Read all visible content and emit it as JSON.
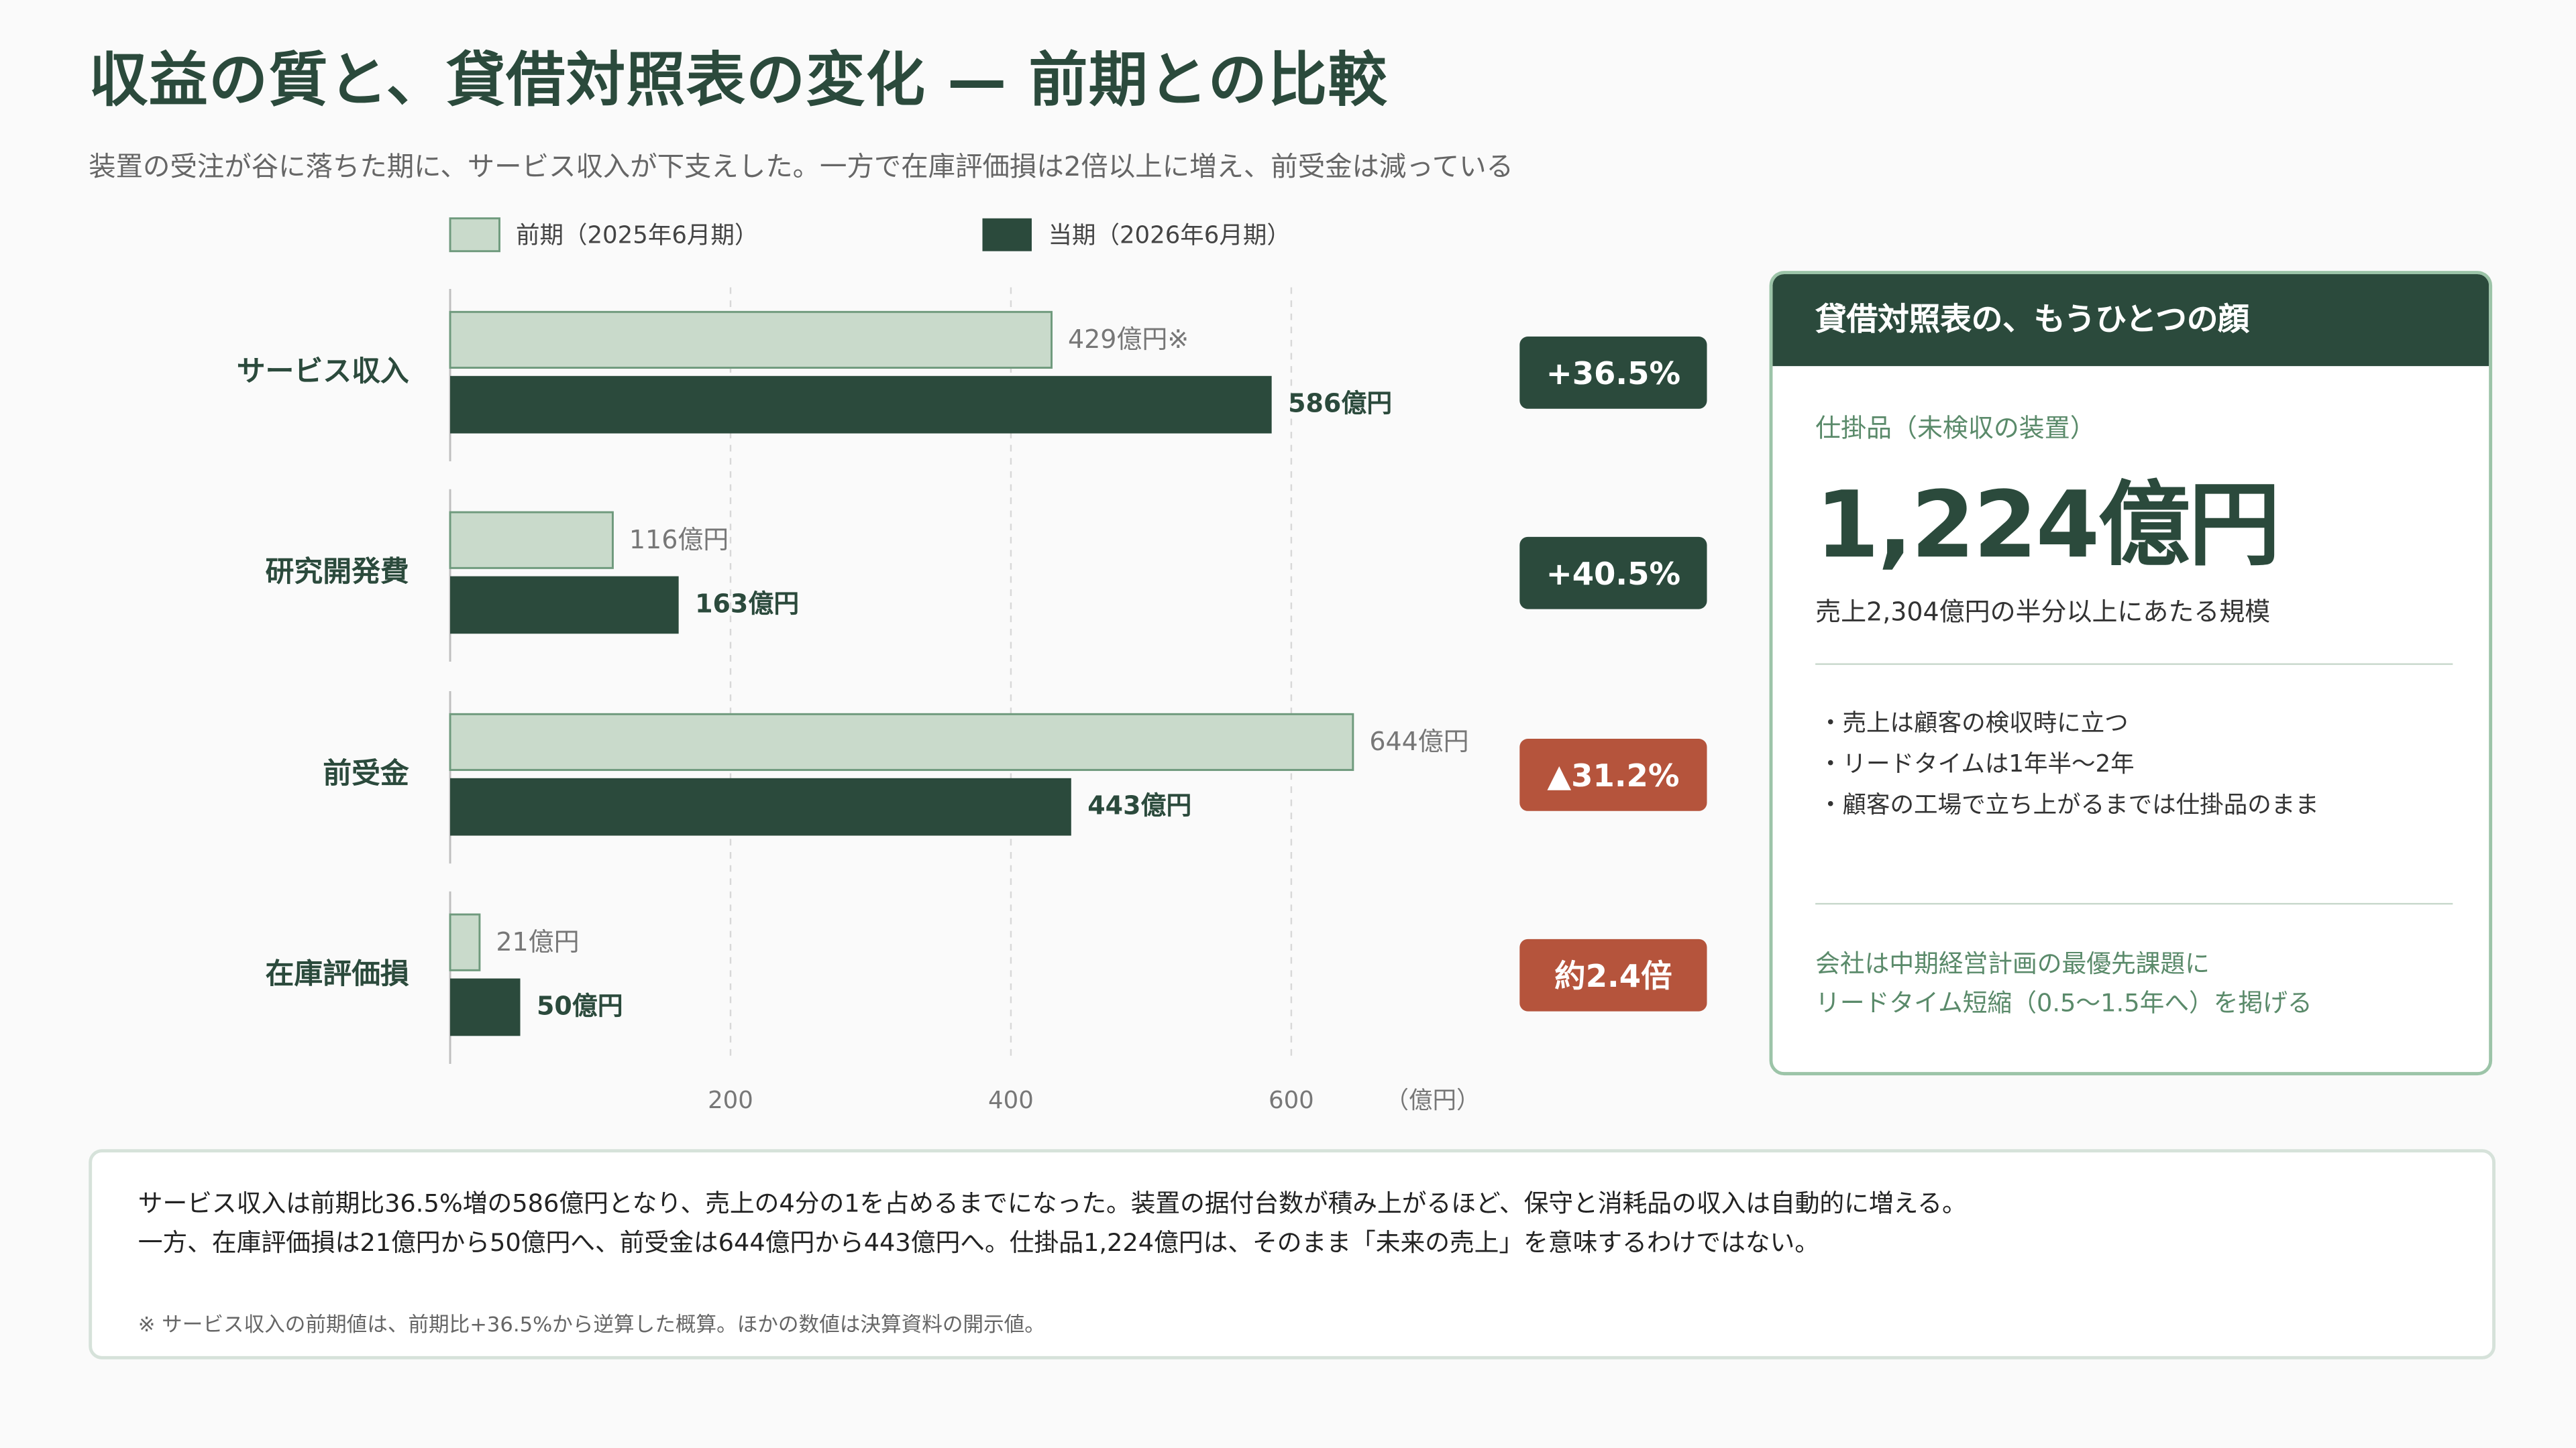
{
  "header": {
    "title": "収益の質と、貸借対照表の変化 — 前期との比較",
    "subtitle": "装置の受注が谷に落ちた期に、サービス収入が下支えした。一方で在庫評価損は2倍以上に増え、前受金は減っている"
  },
  "colors": {
    "previous": "#c9dacb",
    "previous_border": "#6f9a7d",
    "current": "#2b4a3c",
    "badge_positive": "#2b4a3c",
    "badge_negative": "#b5543c",
    "card_border": "#9cc4a8",
    "accent_text": "#5a8a6a"
  },
  "chart_data": {
    "type": "bar",
    "orientation": "horizontal",
    "categories": [
      "サービス収入",
      "研究開発費",
      "前受金",
      "在庫評価損"
    ],
    "series": [
      {
        "name": "前期（2025年6月期）",
        "values": [
          429,
          116,
          644,
          21
        ]
      },
      {
        "name": "当期（2026年6月期）",
        "values": [
          586,
          163,
          443,
          50
        ]
      }
    ],
    "value_labels_previous": [
      "429億円※",
      "116億円",
      "644億円",
      "21億円"
    ],
    "value_labels_current": [
      "586億円",
      "163億円",
      "443億円",
      "50億円"
    ],
    "change_badges": [
      {
        "text": "+36.5%",
        "tone": "positive"
      },
      {
        "text": "+40.5%",
        "tone": "positive"
      },
      {
        "text": "▲31.2%",
        "tone": "negative"
      },
      {
        "text": "約2.4倍",
        "tone": "negative"
      }
    ],
    "x_ticks": [
      200,
      400,
      600
    ],
    "x_tick_labels": [
      "200",
      "400",
      "600"
    ],
    "xlabel": "（億円）",
    "xlim": [
      0,
      700
    ],
    "grid": true,
    "legend_position": "top"
  },
  "card": {
    "header": "貸借対照表の、もうひとつの顔",
    "sublabel": "仕掛品（未検収の装置）",
    "big_value": "1,224億円",
    "caption": "売上2,304億円の半分以上にあたる規模",
    "bullets": [
      "売上は顧客の検収時に立つ",
      "リードタイムは1年半〜2年",
      "顧客の工場で立ち上がるまでは仕掛品のまま"
    ],
    "note_line1": "会社は中期経営計画の最優先課題に",
    "note_line2": "リードタイム短縮（0.5〜1.5年へ）を掲げる"
  },
  "summary": {
    "line1": "サービス収入は前期比36.5%増の586億円となり、売上の4分の1を占めるまでになった。装置の据付台数が積み上がるほど、保守と消耗品の収入は自動的に増える。",
    "line2": "一方、在庫評価損は21億円から50億円へ、前受金は644億円から443億円へ。仕掛品1,224億円は、そのまま「未来の売上」を意味するわけではない。",
    "footnote": "※ サービス収入の前期値は、前期比+36.5%から逆算した概算。ほかの数値は決算資料の開示値。"
  }
}
